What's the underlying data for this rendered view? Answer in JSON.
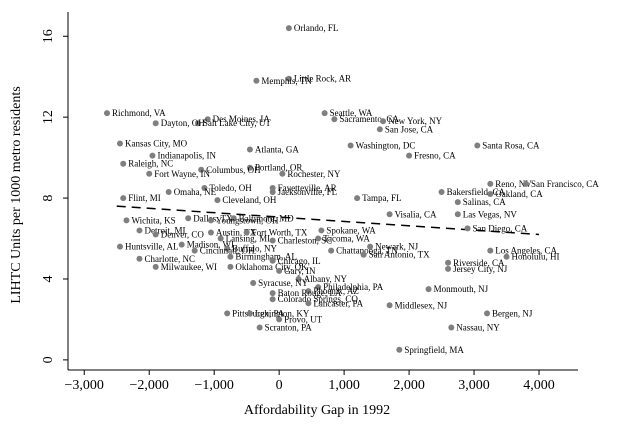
{
  "chart_data": {
    "type": "scatter",
    "title": "",
    "xlabel": "Affordability Gap in 1992",
    "ylabel": "LIHTC Units per 1000 metro residents",
    "xlim": [
      -3250,
      4600
    ],
    "ylim": [
      -0.5,
      17.2
    ],
    "xticks": [
      -3000,
      -2000,
      -1000,
      0,
      1000,
      2000,
      3000,
      4000
    ],
    "xtick_labels": [
      "−3,000",
      "−2,000",
      "−1,000",
      "0",
      "1,000",
      "2,000",
      "3,000",
      "4,000"
    ],
    "yticks": [
      0,
      4,
      8,
      12,
      16
    ],
    "ytick_labels": [
      "0",
      "4",
      "8",
      "12",
      "16"
    ],
    "grid": false,
    "fit_line": {
      "style": "dashed",
      "x": [
        -2500,
        4000
      ],
      "y": [
        7.6,
        6.2
      ]
    },
    "points": [
      {
        "label": "Orlando, FL",
        "x": 150,
        "y": 16.4
      },
      {
        "label": "Little Rock, AR",
        "x": 150,
        "y": 13.9
      },
      {
        "label": "Memphis, TN",
        "x": -350,
        "y": 13.8
      },
      {
        "label": "Richmond, VA",
        "x": -2650,
        "y": 12.2
      },
      {
        "label": "Des Moines, IA",
        "x": -1100,
        "y": 11.9
      },
      {
        "label": "Salt Lake City, UT",
        "x": -1250,
        "y": 11.7
      },
      {
        "label": "Dayton, OH",
        "x": -1900,
        "y": 11.7
      },
      {
        "label": "Seattle, WA",
        "x": 700,
        "y": 12.2
      },
      {
        "label": "Sacramento, CA",
        "x": 850,
        "y": 11.9
      },
      {
        "label": "New York, NY",
        "x": 1600,
        "y": 11.8
      },
      {
        "label": "San Jose, CA",
        "x": 1550,
        "y": 11.4
      },
      {
        "label": "Kansas City, MO",
        "x": -2450,
        "y": 10.7
      },
      {
        "label": "Washington, DC",
        "x": 1100,
        "y": 10.6
      },
      {
        "label": "Santa Rosa, CA",
        "x": 3050,
        "y": 10.6
      },
      {
        "label": "Atlanta, GA",
        "x": -450,
        "y": 10.4
      },
      {
        "label": "Indianapolis, IN",
        "x": -1950,
        "y": 10.1
      },
      {
        "label": "Fresno, CA",
        "x": 2000,
        "y": 10.1
      },
      {
        "label": "Raleigh, NC",
        "x": -2400,
        "y": 9.7
      },
      {
        "label": "Portland, OR",
        "x": -450,
        "y": 9.5
      },
      {
        "label": "Columbus, OH",
        "x": -1200,
        "y": 9.4
      },
      {
        "label": "Fort Wayne, IN",
        "x": -2000,
        "y": 9.2
      },
      {
        "label": "Rochester, NY",
        "x": 50,
        "y": 9.2
      },
      {
        "label": "Reno, NV",
        "x": 3250,
        "y": 8.7
      },
      {
        "label": "San Francisco, CA",
        "x": 3800,
        "y": 8.7
      },
      {
        "label": "Toledo, OH",
        "x": -1150,
        "y": 8.5
      },
      {
        "label": "Fayetteville, AR",
        "x": -100,
        "y": 8.5
      },
      {
        "label": "Omaha, NE",
        "x": -1700,
        "y": 8.3
      },
      {
        "label": "Jacksonville, FL",
        "x": -100,
        "y": 8.3
      },
      {
        "label": "Bakersfield, CA",
        "x": 2500,
        "y": 8.3
      },
      {
        "label": "Oakland, CA",
        "x": 3250,
        "y": 8.2
      },
      {
        "label": "Flint, MI",
        "x": -2400,
        "y": 8.0
      },
      {
        "label": "Tampa, FL",
        "x": 1200,
        "y": 8.0
      },
      {
        "label": "Cleveland, OH",
        "x": -950,
        "y": 7.9
      },
      {
        "label": "Salinas, CA",
        "x": 2750,
        "y": 7.8
      },
      {
        "label": "Visalia, CA",
        "x": 1700,
        "y": 7.2
      },
      {
        "label": "Las Vegas, NV",
        "x": 2750,
        "y": 7.2
      },
      {
        "label": "Dallas, TX",
        "x": -1400,
        "y": 7.0
      },
      {
        "label": "Wichita, KS",
        "x": -2350,
        "y": 6.9
      },
      {
        "label": "Baltimore, MD",
        "x": -700,
        "y": 7.0
      },
      {
        "label": "Youngstown, OH",
        "x": -1050,
        "y": 6.9
      },
      {
        "label": "San Diego, CA",
        "x": 2900,
        "y": 6.5
      },
      {
        "label": "Spokane, WA",
        "x": 650,
        "y": 6.4
      },
      {
        "label": "Detroit, MI",
        "x": -2150,
        "y": 6.4
      },
      {
        "label": "Denver, CO",
        "x": -1900,
        "y": 6.2
      },
      {
        "label": "Austin, TX",
        "x": -1050,
        "y": 6.3
      },
      {
        "label": "Fort Worth, TX",
        "x": -500,
        "y": 6.3
      },
      {
        "label": "Lansing, MI",
        "x": -900,
        "y": 6.0
      },
      {
        "label": "Tacoma, WA",
        "x": 600,
        "y": 6.0
      },
      {
        "label": "Charleston, SC",
        "x": -100,
        "y": 5.9
      },
      {
        "label": "Madison, WI",
        "x": -1500,
        "y": 5.7
      },
      {
        "label": "Newark, NJ",
        "x": 1400,
        "y": 5.6
      },
      {
        "label": "Huntsville, AL",
        "x": -2450,
        "y": 5.6
      },
      {
        "label": "Buffalo, NY",
        "x": -800,
        "y": 5.5
      },
      {
        "label": "Cincinnati, OH",
        "x": -1300,
        "y": 5.4
      },
      {
        "label": "Chattanooga, TN",
        "x": 800,
        "y": 5.4
      },
      {
        "label": "San Antonio, TX",
        "x": 1300,
        "y": 5.2
      },
      {
        "label": "Los Angeles, CA",
        "x": 3250,
        "y": 5.4
      },
      {
        "label": "Birmingham, AL",
        "x": -750,
        "y": 5.1
      },
      {
        "label": "Honolulu, HI",
        "x": 3500,
        "y": 5.1
      },
      {
        "label": "Charlotte, NC",
        "x": -2150,
        "y": 5.0
      },
      {
        "label": "Chicago, IL",
        "x": -100,
        "y": 4.9
      },
      {
        "label": "Riverside, CA",
        "x": 2600,
        "y": 4.8
      },
      {
        "label": "Milwaukee, WI",
        "x": -1900,
        "y": 4.6
      },
      {
        "label": "Oklahoma City, OK",
        "x": -750,
        "y": 4.6
      },
      {
        "label": "Gary, IN",
        "x": 0,
        "y": 4.4
      },
      {
        "label": "Jersey City, NJ",
        "x": 2600,
        "y": 4.5
      },
      {
        "label": "Albany, NY",
        "x": 300,
        "y": 4.0
      },
      {
        "label": "Syracuse, NY",
        "x": -400,
        "y": 3.8
      },
      {
        "label": "Philadelphia, PA",
        "x": 600,
        "y": 3.6
      },
      {
        "label": "Phoenix, AZ",
        "x": 450,
        "y": 3.4
      },
      {
        "label": "Monmouth, NJ",
        "x": 2300,
        "y": 3.5
      },
      {
        "label": "Baton Rouge, LA",
        "x": -100,
        "y": 3.3
      },
      {
        "label": "Colorado Springs, CO",
        "x": -100,
        "y": 3.0
      },
      {
        "label": "Lancaster, PA",
        "x": 450,
        "y": 2.8
      },
      {
        "label": "Middlesex, NJ",
        "x": 1700,
        "y": 2.7
      },
      {
        "label": "Pittsburgh, PA",
        "x": -800,
        "y": 2.3
      },
      {
        "label": "Lexington, KY",
        "x": -450,
        "y": 2.3
      },
      {
        "label": "Bergen, NJ",
        "x": 3200,
        "y": 2.3
      },
      {
        "label": "Provo, UT",
        "x": 0,
        "y": 2.0
      },
      {
        "label": "Scranton, PA",
        "x": -300,
        "y": 1.6
      },
      {
        "label": "Nassau, NY",
        "x": 2650,
        "y": 1.6
      },
      {
        "label": "Springfield, MA",
        "x": 1850,
        "y": 0.5
      }
    ]
  }
}
